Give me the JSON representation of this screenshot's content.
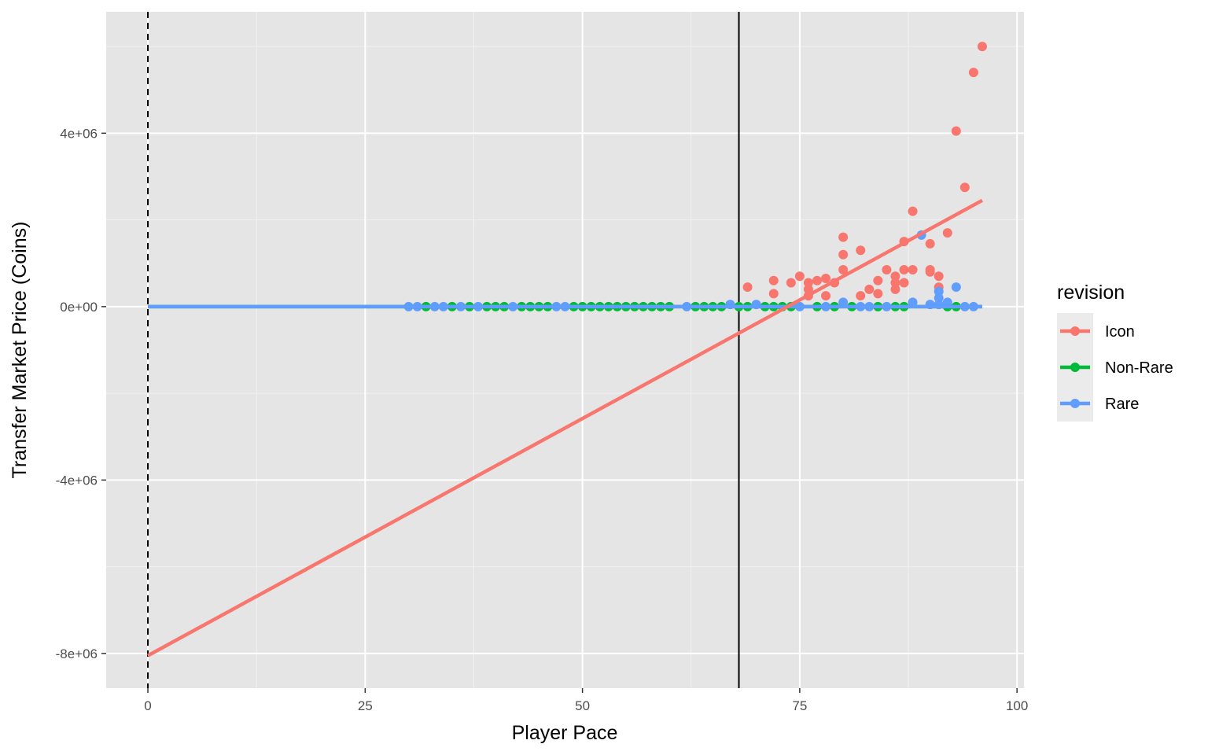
{
  "chart_data": {
    "type": "scatter",
    "xlabel": "Player Pace",
    "ylabel": "Transfer Market Price (Coins)",
    "xlim": [
      -4.8,
      100.8
    ],
    "ylim": [
      -8800000,
      6800000
    ],
    "x_ticks": [
      0,
      25,
      50,
      75,
      100
    ],
    "x_tick_labels": [
      "0",
      "25",
      "50",
      "75",
      "100"
    ],
    "y_ticks": [
      -8000000,
      -4000000,
      0,
      4000000
    ],
    "y_tick_labels": [
      "-8e+06",
      "-4e+06",
      "0e+00",
      "4e+06"
    ],
    "grid": true,
    "background": "#e5e5e5",
    "vlines": [
      {
        "x": 0,
        "style": "dashed",
        "color": "#000000"
      },
      {
        "x": 68,
        "style": "solid",
        "color": "#000000"
      }
    ],
    "legend": {
      "title": "revision",
      "position": "right"
    },
    "series": [
      {
        "name": "Icon",
        "color": "#f8766d",
        "fit_line": {
          "x": [
            0,
            96
          ],
          "y": [
            -8050000,
            2450000
          ]
        },
        "points": [
          [
            69,
            450000
          ],
          [
            72,
            600000
          ],
          [
            72,
            300000
          ],
          [
            74,
            550000
          ],
          [
            75,
            700000
          ],
          [
            76,
            550000
          ],
          [
            76,
            400000
          ],
          [
            76,
            250000
          ],
          [
            77,
            600000
          ],
          [
            78,
            650000
          ],
          [
            78,
            250000
          ],
          [
            79,
            550000
          ],
          [
            80,
            1600000
          ],
          [
            80,
            1200000
          ],
          [
            80,
            850000
          ],
          [
            82,
            1300000
          ],
          [
            82,
            250000
          ],
          [
            83,
            400000
          ],
          [
            84,
            600000
          ],
          [
            84,
            300000
          ],
          [
            85,
            850000
          ],
          [
            86,
            700000
          ],
          [
            86,
            550000
          ],
          [
            86,
            400000
          ],
          [
            87,
            1500000
          ],
          [
            87,
            850000
          ],
          [
            87,
            550000
          ],
          [
            88,
            2200000
          ],
          [
            88,
            850000
          ],
          [
            90,
            1450000
          ],
          [
            90,
            850000
          ],
          [
            90,
            800000
          ],
          [
            91,
            700000
          ],
          [
            91,
            450000
          ],
          [
            92,
            1700000
          ],
          [
            93,
            4050000
          ],
          [
            94,
            2750000
          ],
          [
            95,
            5400000
          ],
          [
            96,
            6000000
          ]
        ]
      },
      {
        "name": "Non-Rare",
        "color": "#00ba38",
        "fit_line": {
          "x": [
            0,
            96
          ],
          "y": [
            0,
            0
          ]
        },
        "points": [
          [
            32,
            0
          ],
          [
            35,
            0
          ],
          [
            37,
            0
          ],
          [
            39,
            0
          ],
          [
            40,
            0
          ],
          [
            41,
            0
          ],
          [
            43,
            0
          ],
          [
            44,
            0
          ],
          [
            45,
            0
          ],
          [
            46,
            0
          ],
          [
            49,
            0
          ],
          [
            50,
            0
          ],
          [
            51,
            0
          ],
          [
            52,
            0
          ],
          [
            53,
            0
          ],
          [
            54,
            0
          ],
          [
            55,
            0
          ],
          [
            56,
            0
          ],
          [
            57,
            0
          ],
          [
            58,
            0
          ],
          [
            59,
            0
          ],
          [
            60,
            0
          ],
          [
            63,
            0
          ],
          [
            64,
            0
          ],
          [
            65,
            0
          ],
          [
            66,
            0
          ],
          [
            68,
            0
          ],
          [
            69,
            0
          ],
          [
            71,
            0
          ],
          [
            72,
            0
          ],
          [
            73,
            0
          ],
          [
            74,
            0
          ],
          [
            77,
            0
          ],
          [
            79,
            0
          ],
          [
            81,
            0
          ],
          [
            84,
            0
          ],
          [
            86,
            0
          ],
          [
            87,
            0
          ],
          [
            92,
            0
          ],
          [
            93,
            0
          ]
        ]
      },
      {
        "name": "Rare",
        "color": "#619cff",
        "fit_line": {
          "x": [
            0,
            96
          ],
          "y": [
            0,
            0
          ]
        },
        "points": [
          [
            30,
            0
          ],
          [
            31,
            0
          ],
          [
            33,
            0
          ],
          [
            34,
            0
          ],
          [
            36,
            0
          ],
          [
            38,
            0
          ],
          [
            42,
            0
          ],
          [
            47,
            0
          ],
          [
            48,
            0
          ],
          [
            62,
            0
          ],
          [
            67,
            50000
          ],
          [
            70,
            50000
          ],
          [
            75,
            0
          ],
          [
            78,
            0
          ],
          [
            80,
            100000
          ],
          [
            82,
            0
          ],
          [
            83,
            0
          ],
          [
            85,
            0
          ],
          [
            88,
            100000
          ],
          [
            89,
            1650000
          ],
          [
            90,
            50000
          ],
          [
            91,
            350000
          ],
          [
            91,
            200000
          ],
          [
            91,
            50000
          ],
          [
            92,
            100000
          ],
          [
            93,
            450000
          ],
          [
            94,
            0
          ],
          [
            95,
            0
          ]
        ]
      }
    ]
  }
}
